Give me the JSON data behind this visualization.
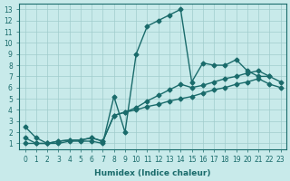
{
  "xlabel": "Humidex (Indice chaleur)",
  "ylabel": "",
  "bg_color": "#c8eaea",
  "line_color": "#1a6b6b",
  "xlim": [
    -0.5,
    23.5
  ],
  "ylim": [
    0.5,
    13.5
  ],
  "xticks": [
    0,
    1,
    2,
    3,
    4,
    5,
    6,
    7,
    8,
    9,
    10,
    11,
    12,
    13,
    14,
    15,
    16,
    17,
    18,
    19,
    20,
    21,
    22,
    23
  ],
  "yticks": [
    1,
    2,
    3,
    4,
    5,
    6,
    7,
    8,
    9,
    10,
    11,
    12,
    13
  ],
  "series": [
    {
      "x": [
        0,
        1,
        2,
        3,
        4,
        5,
        6,
        7,
        8,
        9,
        10,
        11,
        12,
        13,
        14,
        15,
        16,
        17,
        18,
        19,
        20,
        21,
        22,
        23
      ],
      "y": [
        2.5,
        1.5,
        1.0,
        1.0,
        1.2,
        1.2,
        1.2,
        1.0,
        5.2,
        2.0,
        9.0,
        11.5,
        12.0,
        12.5,
        13.0,
        6.5,
        8.2,
        8.0,
        8.0,
        8.5,
        7.5,
        7.0,
        7.0,
        null
      ]
    },
    {
      "x": [
        0,
        1,
        2,
        3,
        4,
        5,
        6,
        7,
        8,
        9,
        10,
        11,
        12,
        13,
        14,
        15,
        16,
        17,
        18,
        19,
        20,
        21,
        22,
        23
      ],
      "y": [
        1.0,
        1.0,
        1.0,
        1.2,
        1.3,
        1.3,
        1.5,
        1.2,
        3.5,
        3.8,
        4.0,
        4.3,
        4.5,
        4.8,
        5.0,
        5.2,
        5.5,
        5.8,
        6.0,
        6.3,
        6.5,
        6.8,
        6.3,
        6.0
      ]
    },
    {
      "x": [
        0,
        1,
        2,
        3,
        4,
        5,
        6,
        7,
        8,
        9,
        10,
        11,
        12,
        13,
        14,
        15,
        16,
        17,
        18,
        19,
        20,
        21,
        22,
        23
      ],
      "y": [
        1.5,
        1.0,
        1.0,
        1.2,
        1.3,
        1.3,
        1.5,
        1.2,
        3.5,
        3.8,
        4.2,
        4.8,
        5.3,
        5.8,
        6.3,
        6.0,
        6.2,
        6.5,
        6.8,
        7.0,
        7.3,
        7.5,
        7.0,
        6.5
      ]
    }
  ]
}
